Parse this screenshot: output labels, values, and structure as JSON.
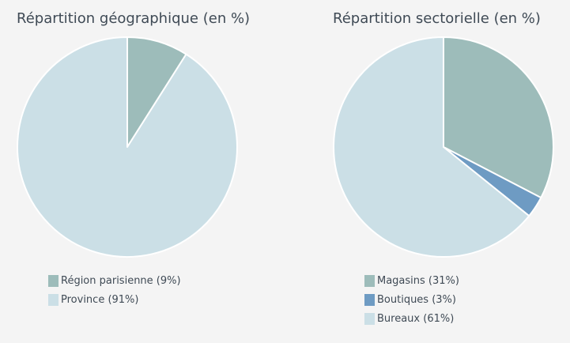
{
  "chart_data": [
    {
      "type": "pie",
      "title": "Répartition géographique (en %)",
      "start_angle_deg": 0,
      "direction": "clockwise",
      "legend_position": "bottom",
      "slices": [
        {
          "label": "Région parisienne (9%)",
          "value": 9,
          "color": "#9dbcba"
        },
        {
          "label": "Province (91%)",
          "value": 91,
          "color": "#cbdfe6"
        }
      ]
    },
    {
      "type": "pie",
      "title": "Répartition sectorielle (en %)",
      "start_angle_deg": 0,
      "direction": "clockwise",
      "legend_position": "bottom",
      "slices": [
        {
          "label": "Magasins (31%)",
          "value": 31,
          "color": "#9dbcba"
        },
        {
          "label": "Boutiques (3%)",
          "value": 3,
          "color": "#6e9bc3"
        },
        {
          "label": "Bureaux (61%)",
          "value": 61,
          "color": "#cbdfe6"
        }
      ]
    }
  ]
}
